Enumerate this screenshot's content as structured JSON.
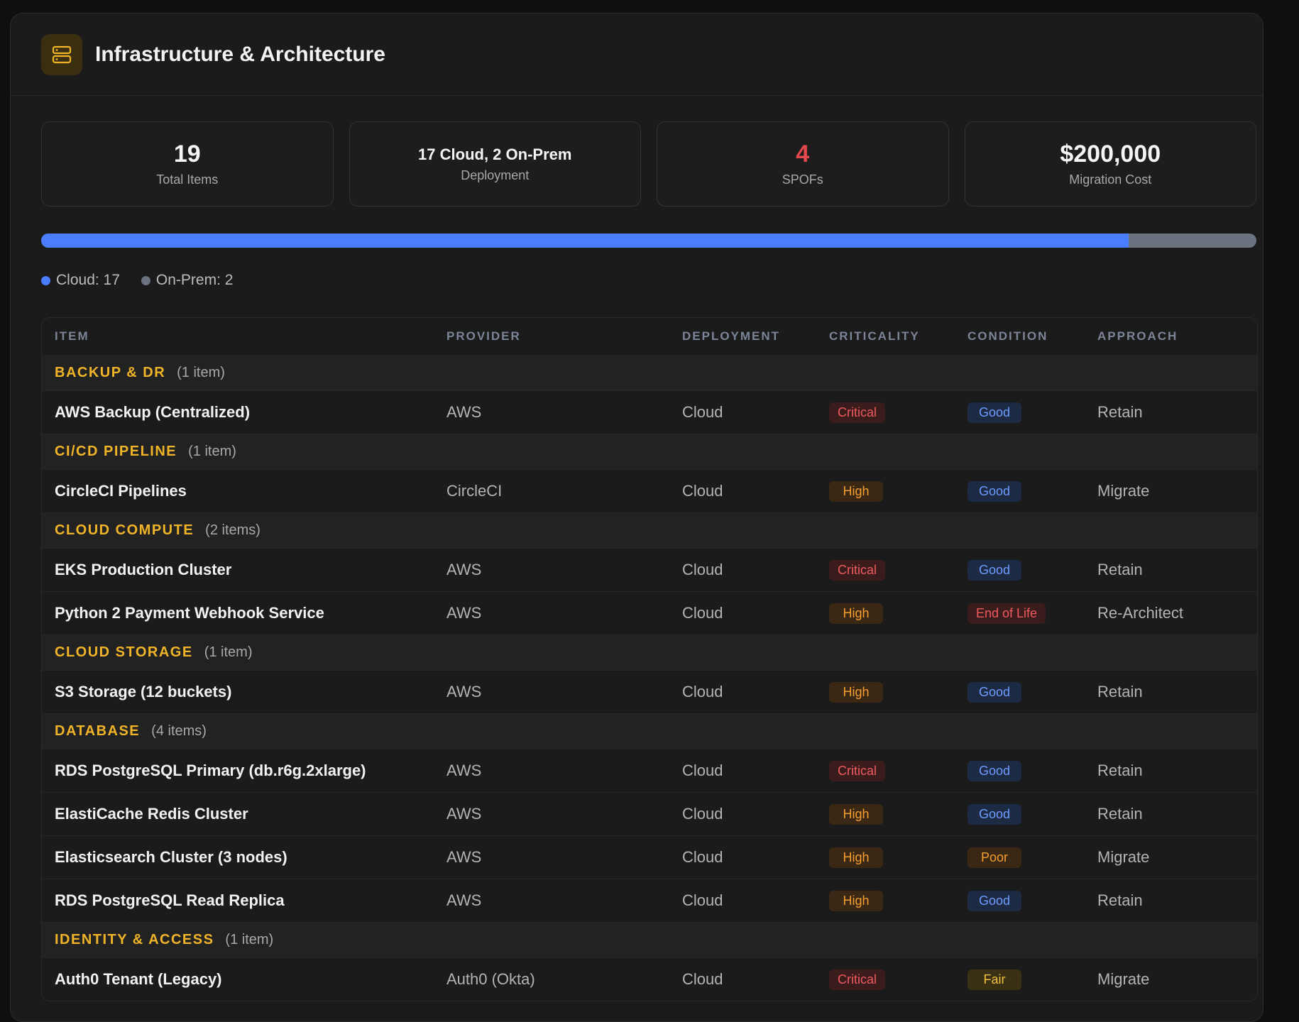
{
  "header": {
    "title": "Infrastructure & Architecture",
    "icon": "server-icon"
  },
  "stats": [
    {
      "value": "19",
      "label": "Total Items"
    },
    {
      "value": "17 Cloud, 2 On-Prem",
      "label": "Deployment"
    },
    {
      "value": "4",
      "label": "SPOFs"
    },
    {
      "value": "$200,000",
      "label": "Migration Cost"
    }
  ],
  "deployment_bar": {
    "cloud": 17,
    "on_prem": 2,
    "cloud_color": "#4a7dff",
    "on_prem_color": "#6b7280"
  },
  "legend": {
    "cloud": "Cloud: 17",
    "on_prem": "On-Prem: 2"
  },
  "table": {
    "headers": {
      "item": "ITEM",
      "provider": "PROVIDER",
      "deployment": "DEPLOYMENT",
      "criticality": "CRITICALITY",
      "condition": "CONDITION",
      "approach": "APPROACH"
    },
    "groups": [
      {
        "name": "BACKUP & DR",
        "count": "(1 item)",
        "rows": [
          {
            "item": "AWS Backup (Centralized)",
            "provider": "AWS",
            "deployment": "Cloud",
            "criticality": "Critical",
            "condition": "Good",
            "approach": "Retain"
          }
        ]
      },
      {
        "name": "CI/CD PIPELINE",
        "count": "(1 item)",
        "rows": [
          {
            "item": "CircleCI Pipelines",
            "provider": "CircleCI",
            "deployment": "Cloud",
            "criticality": "High",
            "condition": "Good",
            "approach": "Migrate"
          }
        ]
      },
      {
        "name": "CLOUD COMPUTE",
        "count": "(2 items)",
        "rows": [
          {
            "item": "EKS Production Cluster",
            "provider": "AWS",
            "deployment": "Cloud",
            "criticality": "Critical",
            "condition": "Good",
            "approach": "Retain"
          },
          {
            "item": "Python 2 Payment Webhook Service",
            "provider": "AWS",
            "deployment": "Cloud",
            "criticality": "High",
            "condition": "End of Life",
            "approach": "Re-Architect"
          }
        ]
      },
      {
        "name": "CLOUD STORAGE",
        "count": "(1 item)",
        "rows": [
          {
            "item": "S3 Storage (12 buckets)",
            "provider": "AWS",
            "deployment": "Cloud",
            "criticality": "High",
            "condition": "Good",
            "approach": "Retain"
          }
        ]
      },
      {
        "name": "DATABASE",
        "count": "(4 items)",
        "rows": [
          {
            "item": "RDS PostgreSQL Primary (db.r6g.2xlarge)",
            "provider": "AWS",
            "deployment": "Cloud",
            "criticality": "Critical",
            "condition": "Good",
            "approach": "Retain"
          },
          {
            "item": "ElastiCache Redis Cluster",
            "provider": "AWS",
            "deployment": "Cloud",
            "criticality": "High",
            "condition": "Good",
            "approach": "Retain"
          },
          {
            "item": "Elasticsearch Cluster (3 nodes)",
            "provider": "AWS",
            "deployment": "Cloud",
            "criticality": "High",
            "condition": "Poor",
            "approach": "Migrate"
          },
          {
            "item": "RDS PostgreSQL Read Replica",
            "provider": "AWS",
            "deployment": "Cloud",
            "criticality": "High",
            "condition": "Good",
            "approach": "Retain"
          }
        ]
      },
      {
        "name": "IDENTITY & ACCESS",
        "count": "(1 item)",
        "rows": [
          {
            "item": "Auth0 Tenant (Legacy)",
            "provider": "Auth0 (Okta)",
            "deployment": "Cloud",
            "criticality": "Critical",
            "condition": "Fair",
            "approach": "Migrate"
          }
        ]
      }
    ]
  }
}
